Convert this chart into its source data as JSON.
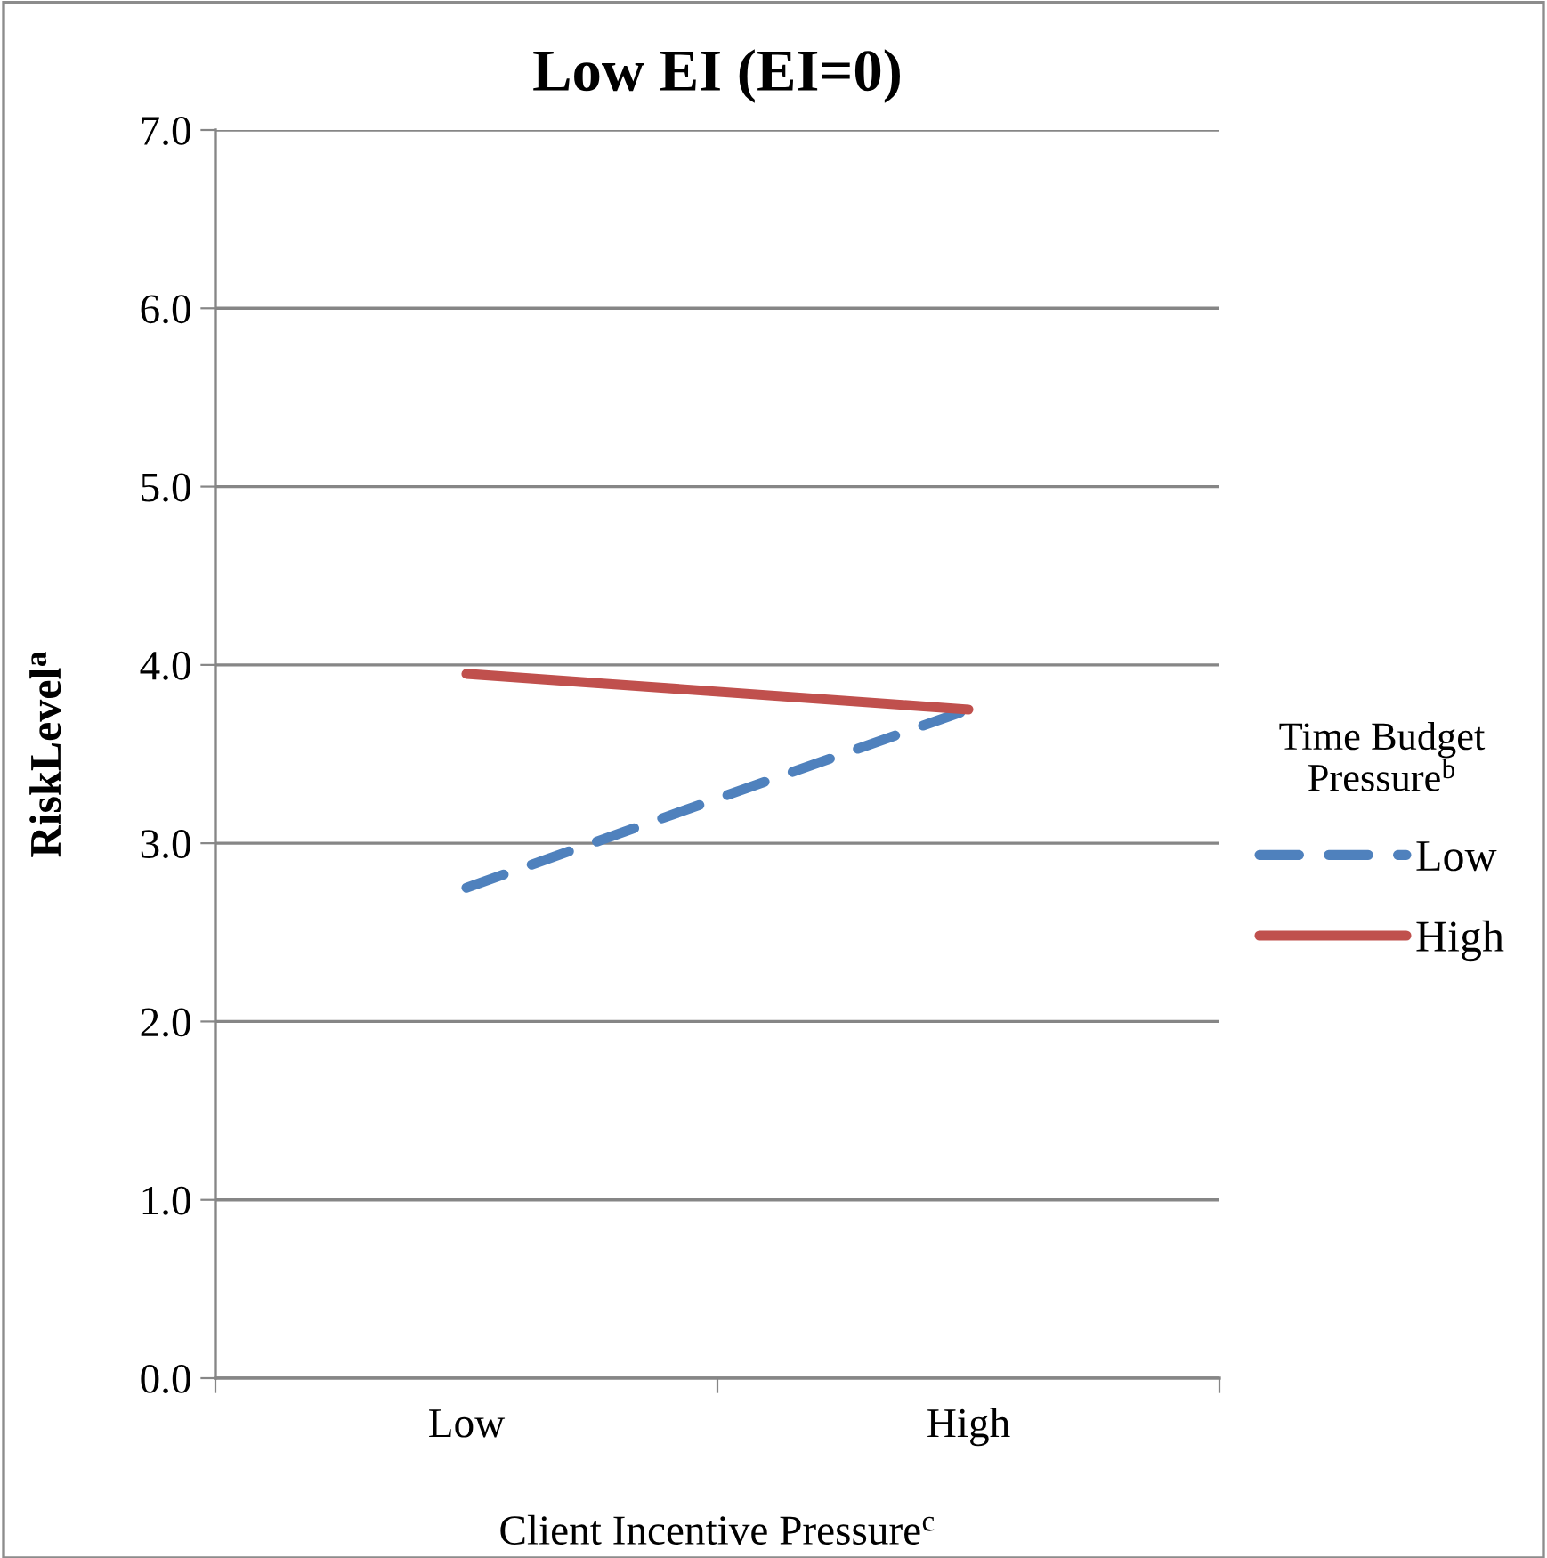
{
  "chart_data": {
    "type": "line",
    "title": "Low EI (EI=0)",
    "xlabel": "Client Incentive Pressure$^{c}$",
    "ylabel": "RiskLevel$^{a}$",
    "legend_title": "Time Budget\nPressure$^{b}$",
    "categories": [
      "Low",
      "High"
    ],
    "series": [
      {
        "name": "Low",
        "color": "#4f81bd",
        "values": [
          2.75,
          3.75
        ],
        "line_style": "dashed"
      },
      {
        "name": "High",
        "color": "#c0504d",
        "values": [
          3.95,
          3.75
        ],
        "line_style": "solid"
      }
    ],
    "ylim": [
      0,
      7
    ],
    "yticks": [
      {
        "value": 0,
        "label": "0.0"
      },
      {
        "value": 1,
        "label": "1.0"
      },
      {
        "value": 2,
        "label": "2.0"
      },
      {
        "value": 3,
        "label": "3.0"
      },
      {
        "value": 4,
        "label": "4.0"
      },
      {
        "value": 5,
        "label": "5.0"
      },
      {
        "value": 6,
        "label": "6.0"
      },
      {
        "value": 7,
        "label": "7.0"
      }
    ],
    "grid": "y",
    "legend": "right",
    "marker": "none"
  }
}
